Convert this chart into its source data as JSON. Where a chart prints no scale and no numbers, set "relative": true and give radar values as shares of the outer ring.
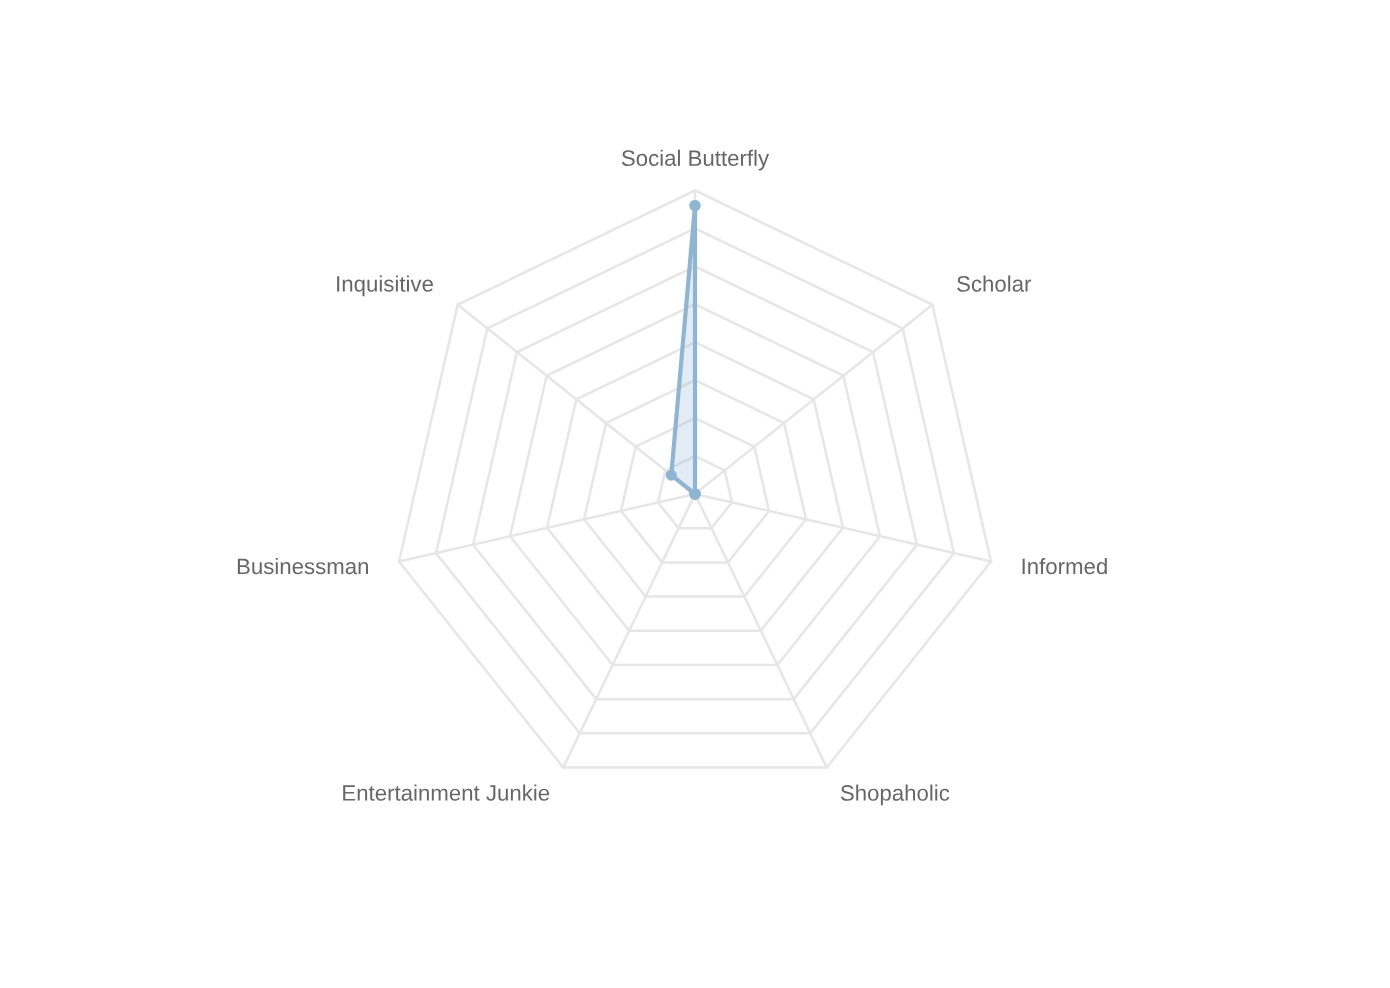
{
  "chart_data": {
    "type": "radar",
    "relative": true,
    "categories": [
      "Social Butterfly",
      "Scholar",
      "Informed",
      "Shopaholic",
      "Entertainment Junkie",
      "Businessman",
      "Inquisitive"
    ],
    "series": [
      {
        "color": "#8fb5d3",
        "values": [
          0.95,
          0,
          0,
          0,
          0,
          0,
          0.1
        ]
      }
    ],
    "marker": "circle",
    "grid": true
  }
}
